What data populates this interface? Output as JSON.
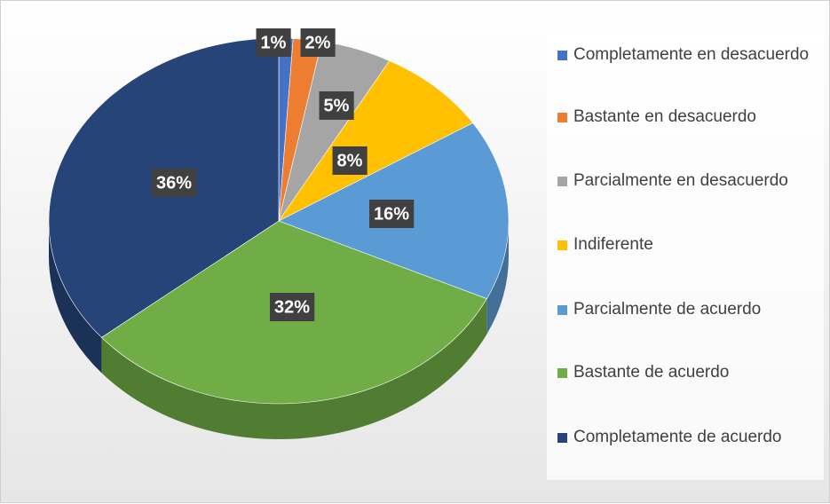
{
  "chart_data": {
    "type": "pie",
    "categories": [
      "Completamente en desacuerdo",
      "Bastante en desacuerdo",
      "Parcialmente en desacuerdo",
      "Indiferente",
      "Parcialmente de acuerdo",
      "Bastante de acuerdo",
      "Completamente de acuerdo"
    ],
    "values": [
      1,
      2,
      5,
      8,
      16,
      32,
      36
    ],
    "value_labels": [
      "1%",
      "2%",
      "5%",
      "8%",
      "16%",
      "32%",
      "36%"
    ],
    "colors": [
      "#4472c4",
      "#ed7d31",
      "#a5a5a5",
      "#ffc000",
      "#5b9bd5",
      "#70ad47",
      "#264478"
    ],
    "legend": "right"
  }
}
